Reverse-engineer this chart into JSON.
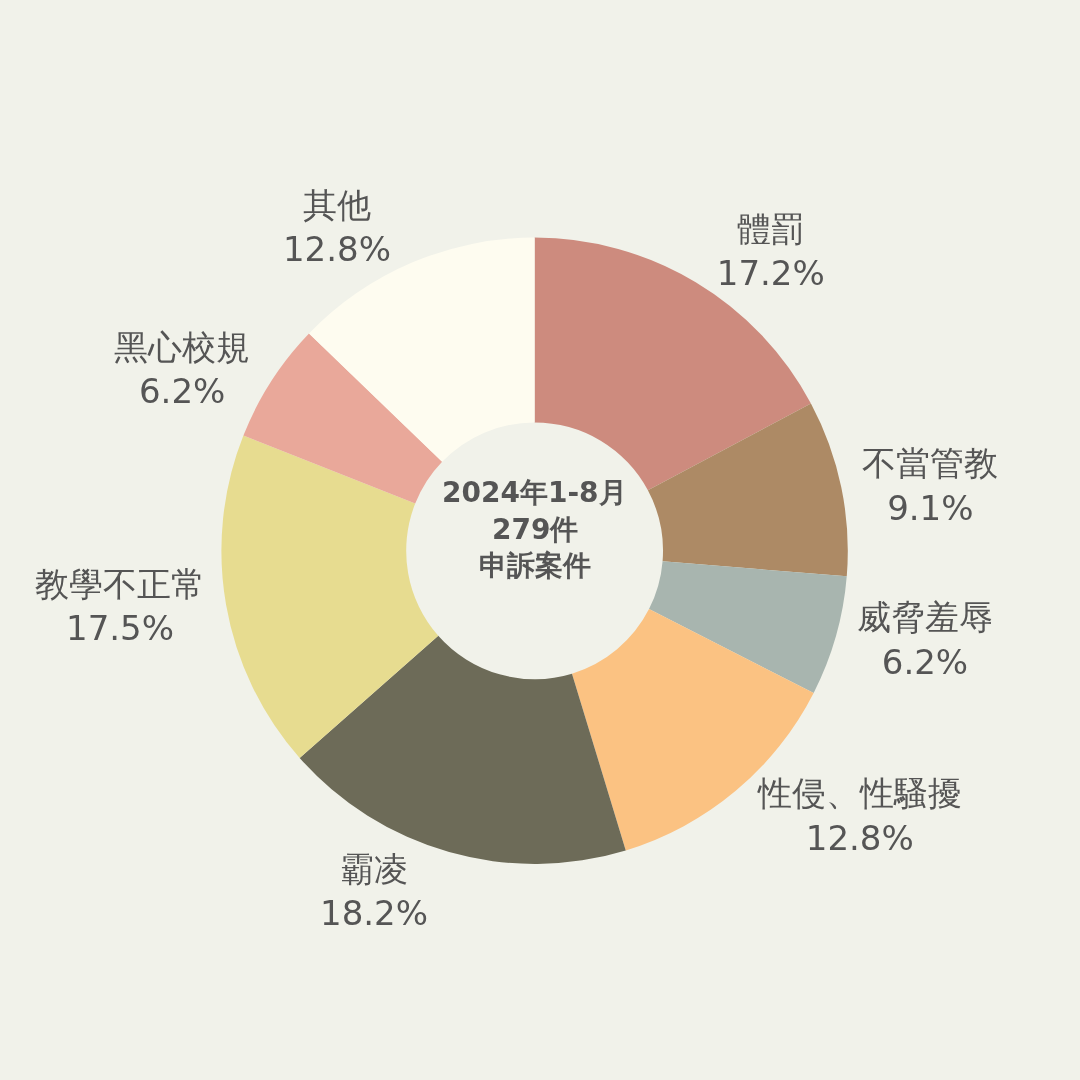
{
  "chart_data": {
    "type": "donut",
    "categories": [
      "體罰",
      "不當管教",
      "威脅羞辱",
      "性侵、性騷擾",
      "霸凌",
      "教學不正常",
      "黑心校規",
      "其他"
    ],
    "values": [
      17.2,
      9.1,
      6.2,
      12.8,
      18.2,
      17.5,
      6.2,
      12.8
    ],
    "value_labels": [
      "17.2%",
      "9.1%",
      "6.2%",
      "12.8%",
      "18.2%",
      "17.5%",
      "6.2%",
      "12.8%"
    ],
    "colors": [
      "#cd8b7e",
      "#ad8a65",
      "#a8b5af",
      "#fbc282",
      "#6d6b58",
      "#e7dc90",
      "#e9a89a",
      "#fefcf0"
    ],
    "annotations": [
      "2024年1-8月",
      "279件",
      "申訴案件"
    ],
    "legend": false
  }
}
